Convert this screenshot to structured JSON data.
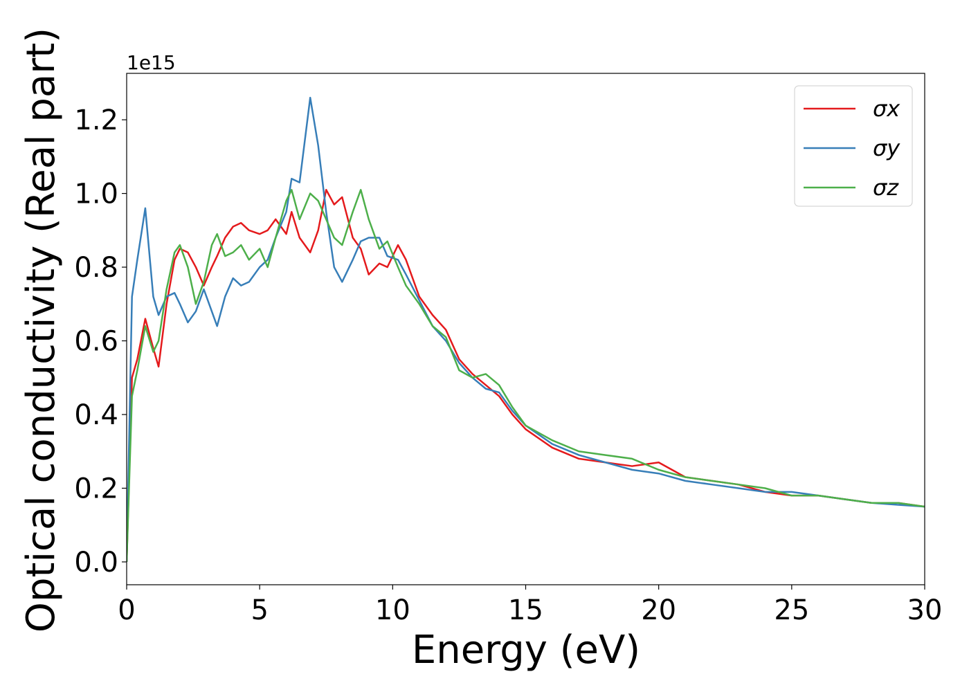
{
  "chart_data": {
    "type": "line",
    "xlabel": "Energy (eV)",
    "ylabel": "Optical conductivity (Real part)",
    "y_offset_label": "1e15",
    "x": [
      0,
      0.2,
      0.4,
      0.7,
      1.0,
      1.2,
      1.5,
      1.8,
      2.0,
      2.3,
      2.6,
      2.9,
      3.2,
      3.4,
      3.7,
      4.0,
      4.3,
      4.6,
      5.0,
      5.3,
      5.6,
      6.0,
      6.2,
      6.5,
      6.9,
      7.2,
      7.5,
      7.8,
      8.1,
      8.5,
      8.8,
      9.1,
      9.5,
      9.8,
      10.2,
      10.5,
      11.0,
      11.5,
      12.0,
      12.5,
      13.0,
      13.5,
      14.0,
      14.5,
      15,
      16,
      17,
      18,
      19,
      20,
      21,
      22,
      23,
      24,
      25,
      26,
      27,
      28,
      29,
      30
    ],
    "series": [
      {
        "name": "σx",
        "color": "#e41a1c",
        "values": [
          0,
          0.5,
          0.55,
          0.66,
          0.58,
          0.53,
          0.7,
          0.82,
          0.85,
          0.84,
          0.8,
          0.75,
          0.8,
          0.83,
          0.88,
          0.91,
          0.92,
          0.9,
          0.89,
          0.9,
          0.93,
          0.89,
          0.95,
          0.88,
          0.84,
          0.9,
          1.01,
          0.97,
          0.99,
          0.88,
          0.85,
          0.78,
          0.81,
          0.8,
          0.86,
          0.82,
          0.72,
          0.67,
          0.63,
          0.55,
          0.51,
          0.48,
          0.45,
          0.4,
          0.36,
          0.31,
          0.28,
          0.27,
          0.26,
          0.27,
          0.23,
          0.22,
          0.21,
          0.19,
          0.18,
          0.18,
          0.17,
          0.16,
          0.16,
          0.15
        ]
      },
      {
        "name": "σy",
        "color": "#377eb8",
        "values": [
          0,
          0.72,
          0.82,
          0.96,
          0.72,
          0.67,
          0.72,
          0.73,
          0.7,
          0.65,
          0.68,
          0.74,
          0.68,
          0.64,
          0.72,
          0.77,
          0.75,
          0.76,
          0.8,
          0.82,
          0.88,
          0.95,
          1.04,
          1.03,
          1.26,
          1.13,
          0.95,
          0.8,
          0.76,
          0.82,
          0.87,
          0.88,
          0.88,
          0.83,
          0.82,
          0.78,
          0.71,
          0.64,
          0.6,
          0.54,
          0.5,
          0.47,
          0.46,
          0.41,
          0.37,
          0.32,
          0.29,
          0.27,
          0.25,
          0.24,
          0.22,
          0.21,
          0.2,
          0.19,
          0.19,
          0.18,
          0.17,
          0.16,
          0.155,
          0.15
        ]
      },
      {
        "name": "σz",
        "color": "#4daf4a",
        "values": [
          0,
          0.45,
          0.52,
          0.64,
          0.57,
          0.6,
          0.74,
          0.84,
          0.86,
          0.8,
          0.7,
          0.76,
          0.86,
          0.89,
          0.83,
          0.84,
          0.86,
          0.82,
          0.85,
          0.8,
          0.88,
          0.98,
          1.01,
          0.93,
          1.0,
          0.98,
          0.93,
          0.88,
          0.86,
          0.95,
          1.01,
          0.93,
          0.85,
          0.87,
          0.8,
          0.75,
          0.7,
          0.64,
          0.61,
          0.52,
          0.5,
          0.51,
          0.48,
          0.42,
          0.37,
          0.33,
          0.3,
          0.29,
          0.28,
          0.25,
          0.23,
          0.22,
          0.21,
          0.2,
          0.18,
          0.18,
          0.17,
          0.16,
          0.16,
          0.15
        ]
      }
    ],
    "xlim": [
      0,
      30
    ],
    "xticks": [
      0,
      5,
      10,
      15,
      20,
      25,
      30
    ],
    "ylim": [
      -0.062,
      1.326
    ],
    "yticks": [
      {
        "value": 0,
        "label": "0.0"
      },
      0.2,
      0.4,
      0.6,
      0.8,
      {
        "value": 1,
        "label": "1.0"
      },
      1.2
    ],
    "legend": "upper right"
  }
}
